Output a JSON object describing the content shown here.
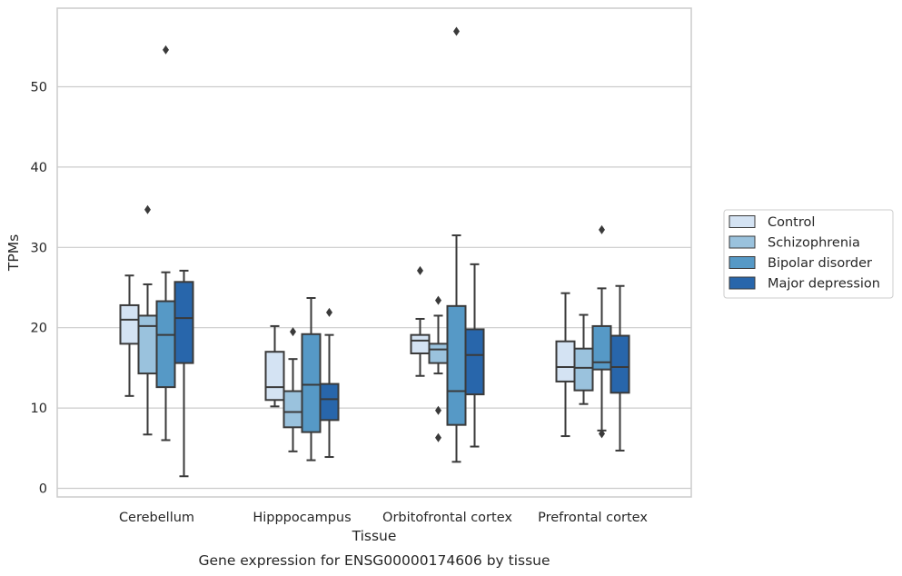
{
  "caption": "Gene expression for ENSG00000174606 by tissue",
  "chart_data": {
    "type": "box",
    "title": "",
    "xlabel": "Tissue",
    "ylabel": "TPMs",
    "ylim": [
      -1,
      60
    ],
    "yticks": [
      0,
      10,
      20,
      30,
      40,
      50
    ],
    "grid": "horizontal",
    "legend_position": "right",
    "categories": [
      "Cerebellum",
      "Hipppocampus",
      "Orbitofrontal cortex",
      "Prefrontal cortex"
    ],
    "series": [
      {
        "name": "Control",
        "color": "#d4e3f3",
        "boxes": [
          {
            "whisker_low": 11.5,
            "q1": 18.0,
            "median": 21.0,
            "q3": 22.8,
            "whisker_high": 26.5,
            "outliers": []
          },
          {
            "whisker_low": 10.2,
            "q1": 11.0,
            "median": 12.6,
            "q3": 17.0,
            "whisker_high": 20.2,
            "outliers": []
          },
          {
            "whisker_low": 14.0,
            "q1": 16.8,
            "median": 18.4,
            "q3": 19.1,
            "whisker_high": 21.1,
            "outliers": [
              27.1
            ]
          },
          {
            "whisker_low": 6.5,
            "q1": 13.3,
            "median": 15.1,
            "q3": 18.3,
            "whisker_high": 24.3,
            "outliers": []
          }
        ]
      },
      {
        "name": "Schizophrenia",
        "color": "#9ac2dd",
        "boxes": [
          {
            "whisker_low": 6.7,
            "q1": 14.3,
            "median": 20.2,
            "q3": 21.5,
            "whisker_high": 25.4,
            "outliers": [
              34.7
            ]
          },
          {
            "whisker_low": 4.6,
            "q1": 7.6,
            "median": 9.5,
            "q3": 12.1,
            "whisker_high": 16.1,
            "outliers": [
              19.5
            ]
          },
          {
            "whisker_low": 14.3,
            "q1": 15.6,
            "median": 17.3,
            "q3": 18.0,
            "whisker_high": 21.5,
            "outliers": [
              23.4,
              9.7,
              6.3
            ]
          },
          {
            "whisker_low": 10.5,
            "q1": 12.2,
            "median": 15.0,
            "q3": 17.4,
            "whisker_high": 21.6,
            "outliers": []
          }
        ]
      },
      {
        "name": "Bipolar disorder",
        "color": "#5699c6",
        "boxes": [
          {
            "whisker_low": 6.0,
            "q1": 12.6,
            "median": 19.1,
            "q3": 23.3,
            "whisker_high": 26.9,
            "outliers": [
              54.6
            ]
          },
          {
            "whisker_low": 3.5,
            "q1": 7.0,
            "median": 12.9,
            "q3": 19.2,
            "whisker_high": 23.7,
            "outliers": []
          },
          {
            "whisker_low": 3.3,
            "q1": 7.9,
            "median": 12.1,
            "q3": 22.7,
            "whisker_high": 31.5,
            "outliers": [
              56.9
            ]
          },
          {
            "whisker_low": 7.2,
            "q1": 14.8,
            "median": 15.7,
            "q3": 20.2,
            "whisker_high": 24.9,
            "outliers": [
              32.2,
              6.8
            ]
          }
        ]
      },
      {
        "name": "Major depression",
        "color": "#2866ab",
        "boxes": [
          {
            "whisker_low": 1.5,
            "q1": 15.6,
            "median": 21.2,
            "q3": 25.7,
            "whisker_high": 27.1,
            "outliers": []
          },
          {
            "whisker_low": 3.9,
            "q1": 8.5,
            "median": 11.1,
            "q3": 13.0,
            "whisker_high": 19.1,
            "outliers": [
              21.9
            ]
          },
          {
            "whisker_low": 5.2,
            "q1": 11.7,
            "median": 16.6,
            "q3": 19.8,
            "whisker_high": 27.9,
            "outliers": []
          },
          {
            "whisker_low": 4.7,
            "q1": 11.9,
            "median": 15.1,
            "q3": 19.0,
            "whisker_high": 25.2,
            "outliers": []
          }
        ]
      }
    ]
  }
}
